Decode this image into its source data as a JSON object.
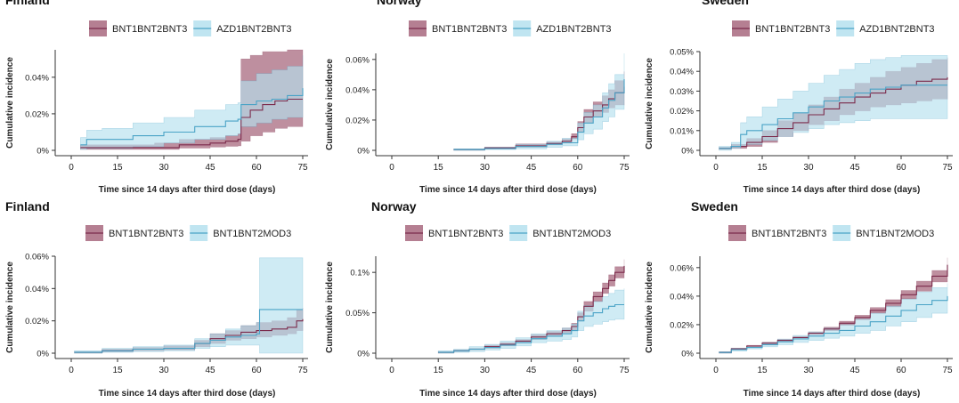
{
  "chart_data": [
    {
      "type": "line",
      "title": "Finland",
      "xlabel": "Time since 14 days after third dose (days)",
      "ylabel": "Cumulative incidence",
      "xlim": [
        0,
        75
      ],
      "ylim": [
        0,
        0.055
      ],
      "xticks": [
        0,
        15,
        30,
        45,
        60,
        75
      ],
      "xtick_labels": [
        "0",
        "15",
        "30",
        "45",
        "60",
        "75"
      ],
      "yticks": [
        0,
        0.02,
        0.04
      ],
      "ytick_labels": [
        "0%",
        "0.02%",
        "0.04%"
      ],
      "legend": "top-center",
      "series": [
        {
          "name": "BNT1BNT2BNT3",
          "color": "#7b2a4b",
          "fill": "#a8697f",
          "x": [
            3,
            10,
            20,
            27,
            35,
            45,
            50,
            54,
            55,
            58,
            62,
            66,
            70,
            75
          ],
          "y": [
            0.0015,
            0.0015,
            0.0015,
            0.0015,
            0.003,
            0.004,
            0.005,
            0.006,
            0.018,
            0.022,
            0.025,
            0.027,
            0.028,
            0.028
          ],
          "lo": [
            0.0005,
            0.0005,
            0.0005,
            0.0005,
            0.0012,
            0.0018,
            0.0022,
            0.0025,
            0.005,
            0.008,
            0.01,
            0.012,
            0.013,
            0.014
          ],
          "hi": [
            0.003,
            0.003,
            0.003,
            0.004,
            0.006,
            0.007,
            0.008,
            0.009,
            0.05,
            0.052,
            0.054,
            0.054,
            0.055,
            0.055
          ]
        },
        {
          "name": "AZD1BNT2BNT3",
          "color": "#4aa3c6",
          "fill": "#b5e1ee",
          "x": [
            3,
            5,
            10,
            20,
            30,
            40,
            50,
            54,
            55,
            60,
            65,
            70,
            75
          ],
          "y": [
            0.003,
            0.006,
            0.006,
            0.008,
            0.01,
            0.013,
            0.016,
            0.017,
            0.025,
            0.027,
            0.028,
            0.03,
            0.034
          ],
          "lo": [
            0.0005,
            0.001,
            0.001,
            0.002,
            0.004,
            0.006,
            0.008,
            0.009,
            0.013,
            0.015,
            0.017,
            0.018,
            0.022
          ],
          "hi": [
            0.007,
            0.011,
            0.012,
            0.015,
            0.018,
            0.022,
            0.025,
            0.026,
            0.038,
            0.042,
            0.044,
            0.046,
            0.052
          ]
        }
      ]
    },
    {
      "type": "line",
      "title": "Norway",
      "xlabel": "Time since 14 days after third dose (days)",
      "ylabel": "Cumulative incidence",
      "xlim": [
        0,
        75
      ],
      "ylim": [
        0,
        0.064
      ],
      "xticks": [
        0,
        15,
        30,
        45,
        60,
        75
      ],
      "xtick_labels": [
        "0",
        "15",
        "30",
        "45",
        "60",
        "75"
      ],
      "yticks": [
        0,
        0.02,
        0.04,
        0.06
      ],
      "ytick_labels": [
        "0%",
        "0.02%",
        "0.04%",
        "0.06%"
      ],
      "legend": "top-center",
      "series": [
        {
          "name": "BNT1BNT2BNT3",
          "color": "#7b2a4b",
          "fill": "#a8697f",
          "x": [
            20,
            30,
            40,
            50,
            55,
            58,
            60,
            62,
            65,
            68,
            70,
            72,
            75
          ],
          "y": [
            0.0005,
            0.0015,
            0.003,
            0.0045,
            0.006,
            0.009,
            0.015,
            0.022,
            0.026,
            0.03,
            0.034,
            0.038,
            0.042
          ],
          "lo": [
            0,
            0.0008,
            0.002,
            0.0035,
            0.0048,
            0.0075,
            0.012,
            0.018,
            0.022,
            0.025,
            0.028,
            0.03,
            0.032
          ],
          "hi": [
            0.001,
            0.0022,
            0.0042,
            0.0056,
            0.0075,
            0.011,
            0.019,
            0.027,
            0.032,
            0.036,
            0.04,
            0.046,
            0.052
          ]
        },
        {
          "name": "AZD1BNT2BNT3",
          "color": "#4aa3c6",
          "fill": "#b5e1ee",
          "x": [
            20,
            30,
            40,
            50,
            55,
            60,
            62,
            65,
            68,
            70,
            72,
            75
          ],
          "y": [
            0.0005,
            0.0012,
            0.0025,
            0.004,
            0.005,
            0.012,
            0.018,
            0.022,
            0.028,
            0.033,
            0.038,
            0.047
          ],
          "lo": [
            0,
            0.0005,
            0.001,
            0.002,
            0.003,
            0.007,
            0.011,
            0.014,
            0.019,
            0.022,
            0.027,
            0.032
          ],
          "hi": [
            0.001,
            0.002,
            0.004,
            0.006,
            0.008,
            0.018,
            0.025,
            0.03,
            0.038,
            0.044,
            0.05,
            0.064
          ]
        }
      ]
    },
    {
      "type": "line",
      "title": "Sweden",
      "xlabel": "Time since 14 days after third dose (days)",
      "ylabel": "Cumulative incidence",
      "xlim": [
        0,
        75
      ],
      "ylim": [
        0,
        0.05
      ],
      "xticks": [
        0,
        15,
        30,
        45,
        60,
        75
      ],
      "xtick_labels": [
        "0",
        "15",
        "30",
        "45",
        "60",
        "75"
      ],
      "yticks": [
        0,
        0.01,
        0.02,
        0.03,
        0.04,
        0.05
      ],
      "ytick_labels": [
        "0%",
        "0.01%",
        "0.02%",
        "0.03%",
        "0.04%",
        "0.05%"
      ],
      "legend": "top-center",
      "series": [
        {
          "name": "BNT1BNT2BNT3",
          "color": "#7b2a4b",
          "fill": "#a8697f",
          "x": [
            1,
            5,
            10,
            15,
            20,
            25,
            30,
            35,
            40,
            45,
            50,
            55,
            60,
            65,
            70,
            75
          ],
          "y": [
            0.001,
            0.002,
            0.004,
            0.007,
            0.011,
            0.014,
            0.018,
            0.021,
            0.024,
            0.027,
            0.029,
            0.031,
            0.033,
            0.035,
            0.036,
            0.037
          ],
          "lo": [
            0.0005,
            0.001,
            0.002,
            0.004,
            0.007,
            0.01,
            0.013,
            0.015,
            0.018,
            0.02,
            0.022,
            0.023,
            0.024,
            0.025,
            0.026,
            0.027
          ],
          "hi": [
            0.0015,
            0.003,
            0.006,
            0.01,
            0.015,
            0.019,
            0.023,
            0.027,
            0.031,
            0.034,
            0.037,
            0.04,
            0.042,
            0.044,
            0.046,
            0.047
          ]
        },
        {
          "name": "AZD1BNT2BNT3",
          "color": "#4aa3c6",
          "fill": "#b5e1ee",
          "x": [
            1,
            5,
            8,
            10,
            15,
            20,
            25,
            30,
            35,
            40,
            45,
            50,
            55,
            60,
            65,
            70,
            75
          ],
          "y": [
            0.001,
            0.002,
            0.008,
            0.01,
            0.013,
            0.016,
            0.019,
            0.022,
            0.025,
            0.027,
            0.029,
            0.031,
            0.032,
            0.033,
            0.033,
            0.033,
            0.033
          ],
          "lo": [
            0,
            0.001,
            0.002,
            0.003,
            0.005,
            0.007,
            0.009,
            0.011,
            0.013,
            0.014,
            0.015,
            0.016,
            0.016,
            0.016,
            0.016,
            0.016,
            0.016
          ],
          "hi": [
            0.002,
            0.004,
            0.014,
            0.017,
            0.022,
            0.026,
            0.03,
            0.034,
            0.038,
            0.041,
            0.044,
            0.046,
            0.047,
            0.048,
            0.048,
            0.048,
            0.048
          ]
        }
      ]
    },
    {
      "type": "line",
      "title": "Finland",
      "xlabel": "Time since 14 days after third dose (days)",
      "ylabel": "Cumulative incidence",
      "xlim": [
        0,
        75
      ],
      "ylim": [
        0,
        0.06
      ],
      "xticks": [
        0,
        15,
        30,
        45,
        60,
        75
      ],
      "xtick_labels": [
        "0",
        "15",
        "30",
        "45",
        "60",
        "75"
      ],
      "yticks": [
        0,
        0.02,
        0.04,
        0.06
      ],
      "ytick_labels": [
        "0%",
        "0.02%",
        "0.04%",
        "0.06%"
      ],
      "legend": "top-center",
      "series": [
        {
          "name": "BNT1BNT2BNT3",
          "color": "#7b2a4b",
          "fill": "#a8697f",
          "x": [
            1,
            10,
            20,
            30,
            40,
            45,
            50,
            55,
            60,
            65,
            70,
            73,
            75
          ],
          "y": [
            0.0005,
            0.0015,
            0.0025,
            0.003,
            0.006,
            0.009,
            0.011,
            0.013,
            0.014,
            0.015,
            0.016,
            0.02,
            0.021
          ],
          "lo": [
            0,
            0.0008,
            0.0015,
            0.002,
            0.004,
            0.006,
            0.008,
            0.009,
            0.01,
            0.011,
            0.012,
            0.014,
            0.015
          ],
          "hi": [
            0.001,
            0.0025,
            0.0035,
            0.0045,
            0.008,
            0.012,
            0.014,
            0.017,
            0.019,
            0.02,
            0.022,
            0.027,
            0.028
          ]
        },
        {
          "name": "BNT1BNT2MOD3",
          "color": "#4aa3c6",
          "fill": "#b5e1ee",
          "x": [
            1,
            10,
            20,
            30,
            40,
            45,
            50,
            55,
            60,
            61,
            65,
            70,
            75
          ],
          "y": [
            0.0005,
            0.0015,
            0.0025,
            0.003,
            0.006,
            0.008,
            0.01,
            0.011,
            0.012,
            0.027,
            0.027,
            0.027,
            0.027
          ],
          "lo": [
            0,
            0.0005,
            0.001,
            0.0015,
            0.003,
            0.004,
            0.005,
            0.005,
            0.005,
            0,
            0,
            0,
            0
          ],
          "hi": [
            0.0015,
            0.003,
            0.004,
            0.005,
            0.009,
            0.012,
            0.015,
            0.017,
            0.019,
            0.059,
            0.059,
            0.059,
            0.059
          ]
        }
      ]
    },
    {
      "type": "line",
      "title": "Norway",
      "xlabel": "Time since 14 days after third dose (days)",
      "ylabel": "Cumulative incidence",
      "xlim": [
        0,
        75
      ],
      "ylim": [
        0,
        0.12
      ],
      "xticks": [
        0,
        15,
        30,
        45,
        60,
        75
      ],
      "xtick_labels": [
        "0",
        "15",
        "30",
        "45",
        "60",
        "75"
      ],
      "yticks": [
        0,
        0.05,
        0.1
      ],
      "ytick_labels": [
        "0%",
        "0.05%",
        "0.1%"
      ],
      "legend": "top-center",
      "series": [
        {
          "name": "BNT1BNT2BNT3",
          "color": "#7b2a4b",
          "fill": "#a8697f",
          "x": [
            15,
            20,
            25,
            30,
            35,
            40,
            45,
            50,
            55,
            58,
            60,
            62,
            65,
            68,
            70,
            72,
            75
          ],
          "y": [
            0.001,
            0.003,
            0.005,
            0.008,
            0.011,
            0.015,
            0.02,
            0.024,
            0.028,
            0.033,
            0.045,
            0.058,
            0.07,
            0.08,
            0.09,
            0.1,
            0.108
          ],
          "lo": [
            0,
            0.002,
            0.004,
            0.006,
            0.009,
            0.013,
            0.017,
            0.021,
            0.025,
            0.029,
            0.04,
            0.052,
            0.064,
            0.074,
            0.083,
            0.093,
            0.1
          ],
          "hi": [
            0.002,
            0.004,
            0.006,
            0.01,
            0.013,
            0.017,
            0.023,
            0.027,
            0.031,
            0.037,
            0.05,
            0.064,
            0.076,
            0.087,
            0.097,
            0.107,
            0.116
          ]
        },
        {
          "name": "BNT1BNT2MOD3",
          "color": "#4aa3c6",
          "fill": "#b5e1ee",
          "x": [
            15,
            20,
            25,
            30,
            35,
            40,
            45,
            50,
            55,
            58,
            60,
            62,
            65,
            68,
            70,
            72,
            75
          ],
          "y": [
            0.001,
            0.003,
            0.005,
            0.007,
            0.01,
            0.013,
            0.018,
            0.021,
            0.024,
            0.028,
            0.04,
            0.046,
            0.05,
            0.055,
            0.058,
            0.06,
            0.06
          ],
          "lo": [
            0,
            0.001,
            0.002,
            0.004,
            0.006,
            0.009,
            0.013,
            0.015,
            0.017,
            0.02,
            0.028,
            0.033,
            0.036,
            0.039,
            0.041,
            0.042,
            0.042
          ],
          "hi": [
            0.003,
            0.005,
            0.008,
            0.011,
            0.015,
            0.019,
            0.024,
            0.028,
            0.031,
            0.036,
            0.052,
            0.059,
            0.064,
            0.07,
            0.074,
            0.078,
            0.08
          ]
        }
      ]
    },
    {
      "type": "line",
      "title": "Sweden",
      "xlabel": "Time since 14 days after third dose (days)",
      "ylabel": "Cumulative incidence",
      "xlim": [
        0,
        75
      ],
      "ylim": [
        0,
        0.068
      ],
      "xticks": [
        0,
        15,
        30,
        45,
        60,
        75
      ],
      "xtick_labels": [
        "0",
        "15",
        "30",
        "45",
        "60",
        "75"
      ],
      "yticks": [
        0,
        0.02,
        0.04,
        0.06
      ],
      "ytick_labels": [
        "0%",
        "0.02%",
        "0.04%",
        "0.06%"
      ],
      "legend": "top-center",
      "series": [
        {
          "name": "BNT1BNT2BNT3",
          "color": "#7b2a4b",
          "fill": "#a8697f",
          "x": [
            1,
            5,
            10,
            15,
            20,
            25,
            30,
            35,
            40,
            45,
            50,
            55,
            60,
            65,
            70,
            75
          ],
          "y": [
            0.0005,
            0.003,
            0.005,
            0.007,
            0.009,
            0.011,
            0.014,
            0.017,
            0.021,
            0.025,
            0.03,
            0.035,
            0.041,
            0.047,
            0.054,
            0.062
          ],
          "lo": [
            0,
            0.0025,
            0.0045,
            0.0063,
            0.0082,
            0.0102,
            0.013,
            0.0158,
            0.0196,
            0.0234,
            0.028,
            0.0325,
            0.038,
            0.0435,
            0.05,
            0.057
          ],
          "hi": [
            0.001,
            0.0035,
            0.0055,
            0.0077,
            0.0098,
            0.0118,
            0.015,
            0.0182,
            0.0224,
            0.0266,
            0.032,
            0.0375,
            0.044,
            0.0505,
            0.058,
            0.067
          ]
        },
        {
          "name": "BNT1BNT2MOD3",
          "color": "#4aa3c6",
          "fill": "#b5e1ee",
          "x": [
            1,
            5,
            10,
            15,
            20,
            25,
            30,
            35,
            40,
            45,
            50,
            55,
            60,
            65,
            70,
            75
          ],
          "y": [
            0.0005,
            0.0025,
            0.004,
            0.006,
            0.008,
            0.01,
            0.012,
            0.014,
            0.016,
            0.019,
            0.022,
            0.026,
            0.03,
            0.034,
            0.037,
            0.04
          ],
          "lo": [
            0,
            0.0015,
            0.003,
            0.0045,
            0.006,
            0.0075,
            0.009,
            0.0105,
            0.012,
            0.014,
            0.016,
            0.019,
            0.022,
            0.025,
            0.028,
            0.031
          ],
          "hi": [
            0.001,
            0.0035,
            0.005,
            0.0075,
            0.01,
            0.0125,
            0.015,
            0.0175,
            0.02,
            0.024,
            0.028,
            0.033,
            0.038,
            0.043,
            0.046,
            0.049
          ]
        }
      ]
    }
  ]
}
